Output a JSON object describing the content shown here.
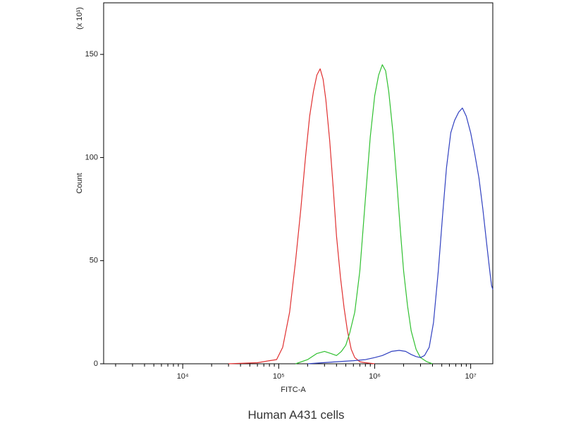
{
  "chart_data": {
    "type": "line",
    "caption": "Human A431 cells",
    "xlabel": "FITC-A",
    "ylabel": "Count",
    "y_multiplier_label": "(x 10¹)",
    "x_scale": "log",
    "xlim": [
      1500,
      17000000
    ],
    "ylim": [
      0,
      175
    ],
    "x_ticks": [
      {
        "value": 10000,
        "label": "10⁴"
      },
      {
        "value": 100000,
        "label": "10⁵"
      },
      {
        "value": 1000000,
        "label": "10⁶"
      },
      {
        "value": 10000000,
        "label": "10⁷"
      }
    ],
    "y_ticks": [
      {
        "value": 0,
        "label": "0"
      },
      {
        "value": 50,
        "label": "50"
      },
      {
        "value": 100,
        "label": "100"
      },
      {
        "value": 150,
        "label": "150"
      }
    ],
    "grid": false,
    "legend": "none",
    "series": [
      {
        "color": "#e03030",
        "points": [
          [
            30000,
            0
          ],
          [
            60000,
            0.5
          ],
          [
            80000,
            1.5
          ],
          [
            95000,
            2
          ],
          [
            110000,
            8
          ],
          [
            130000,
            25
          ],
          [
            150000,
            50
          ],
          [
            170000,
            75
          ],
          [
            190000,
            100
          ],
          [
            210000,
            120
          ],
          [
            230000,
            132
          ],
          [
            250000,
            140
          ],
          [
            270000,
            143
          ],
          [
            290000,
            138
          ],
          [
            310000,
            128
          ],
          [
            340000,
            108
          ],
          [
            370000,
            85
          ],
          [
            400000,
            62
          ],
          [
            440000,
            42
          ],
          [
            480000,
            27
          ],
          [
            520000,
            16
          ],
          [
            570000,
            7
          ],
          [
            620000,
            3
          ],
          [
            700000,
            1
          ],
          [
            800000,
            0.5
          ],
          [
            1000000,
            0
          ]
        ]
      },
      {
        "color": "#30c030",
        "points": [
          [
            150000,
            0
          ],
          [
            200000,
            2
          ],
          [
            250000,
            5
          ],
          [
            300000,
            6
          ],
          [
            350000,
            5
          ],
          [
            400000,
            4
          ],
          [
            450000,
            6
          ],
          [
            500000,
            9
          ],
          [
            550000,
            15
          ],
          [
            620000,
            25
          ],
          [
            700000,
            45
          ],
          [
            800000,
            80
          ],
          [
            900000,
            110
          ],
          [
            1000000,
            130
          ],
          [
            1100000,
            140
          ],
          [
            1200000,
            145
          ],
          [
            1300000,
            142
          ],
          [
            1400000,
            132
          ],
          [
            1550000,
            112
          ],
          [
            1700000,
            88
          ],
          [
            1850000,
            65
          ],
          [
            2000000,
            45
          ],
          [
            2200000,
            28
          ],
          [
            2400000,
            16
          ],
          [
            2700000,
            7
          ],
          [
            3000000,
            3
          ],
          [
            3500000,
            1
          ],
          [
            4000000,
            0
          ]
        ]
      },
      {
        "color": "#3040c0",
        "points": [
          [
            200000,
            0
          ],
          [
            400000,
            1
          ],
          [
            600000,
            1.5
          ],
          [
            800000,
            2
          ],
          [
            1000000,
            3
          ],
          [
            1200000,
            4
          ],
          [
            1500000,
            6
          ],
          [
            1800000,
            6.5
          ],
          [
            2100000,
            6
          ],
          [
            2400000,
            4.5
          ],
          [
            2700000,
            3.5
          ],
          [
            3000000,
            3
          ],
          [
            3300000,
            4
          ],
          [
            3700000,
            8
          ],
          [
            4100000,
            20
          ],
          [
            4600000,
            45
          ],
          [
            5100000,
            72
          ],
          [
            5600000,
            95
          ],
          [
            6200000,
            112
          ],
          [
            6800000,
            118
          ],
          [
            7500000,
            122
          ],
          [
            8200000,
            124
          ],
          [
            9000000,
            120
          ],
          [
            10000000,
            112
          ],
          [
            11000000,
            102
          ],
          [
            12200000,
            90
          ],
          [
            13400000,
            75
          ],
          [
            14700000,
            58
          ],
          [
            15800000,
            45
          ],
          [
            16500000,
            38
          ],
          [
            17000000,
            36
          ]
        ]
      }
    ]
  }
}
